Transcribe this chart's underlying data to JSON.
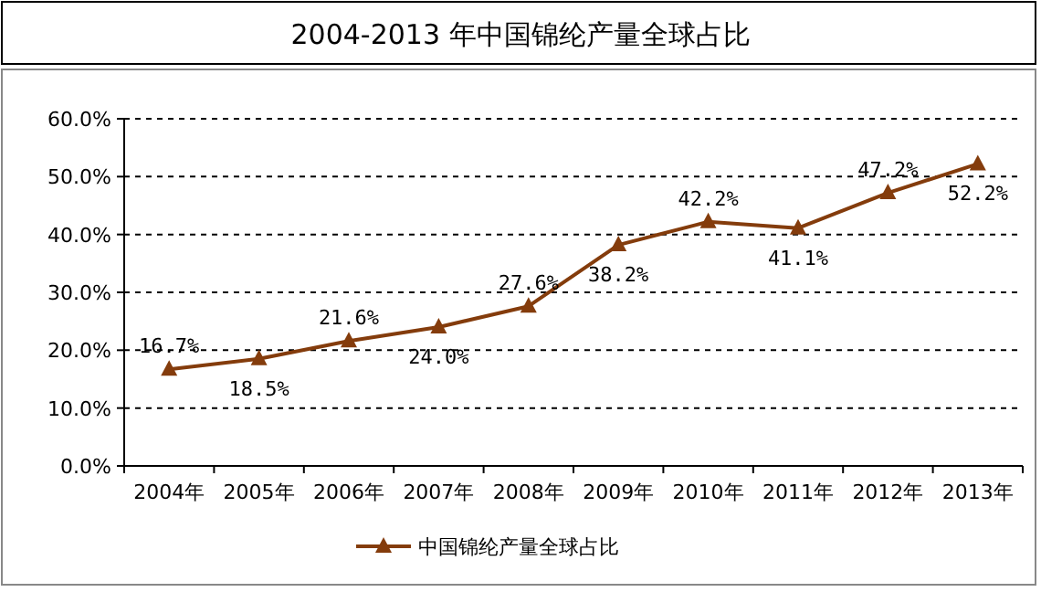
{
  "chart_data": {
    "type": "line",
    "title": "2004-2013 年中国锦纶产量全球占比",
    "categories": [
      "2004年",
      "2005年",
      "2006年",
      "2007年",
      "2008年",
      "2009年",
      "2010年",
      "2011年",
      "2012年",
      "2013年"
    ],
    "series": [
      {
        "name": "中国锦纶产量全球占比",
        "color": "#843c0c",
        "values": [
          16.7,
          18.5,
          21.6,
          24.0,
          27.6,
          38.2,
          42.2,
          41.1,
          47.2,
          52.2
        ],
        "value_labels": [
          "16.7%",
          "18.5%",
          "21.6%",
          "24.0%",
          "27.6%",
          "38.2%",
          "42.2%",
          "41.1%",
          "47.2%",
          "52.2%"
        ]
      }
    ],
    "ylim": [
      0,
      60
    ],
    "yticks": [
      {
        "value": 0,
        "label": "0.0%"
      },
      {
        "value": 10,
        "label": "10.0%"
      },
      {
        "value": 20,
        "label": "20.0%"
      },
      {
        "value": 30,
        "label": "30.0%"
      },
      {
        "value": 40,
        "label": "40.0%"
      },
      {
        "value": 50,
        "label": "50.0%"
      },
      {
        "value": 60,
        "label": "60.0%"
      }
    ],
    "grid": "y",
    "legend": "bottom",
    "marker": "triangle"
  }
}
